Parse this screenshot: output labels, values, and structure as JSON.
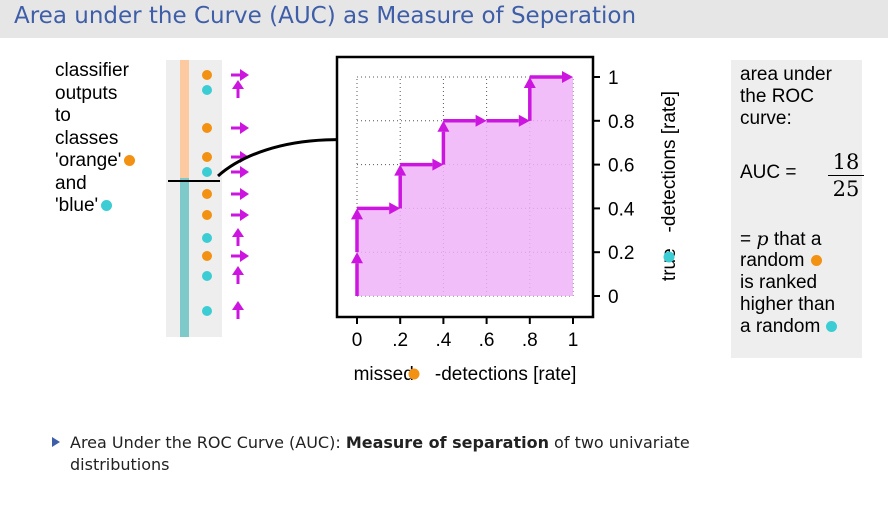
{
  "slide": {
    "title": "Area under the Curve (AUC) as Measure of Seperation"
  },
  "left_caption": [
    "classifier",
    "outputs",
    "to",
    "classes",
    "'orange'",
    "and",
    "'blue'"
  ],
  "ranking": {
    "classes_top_to_bottom": [
      "orange",
      "blue",
      "orange",
      "orange",
      "blue",
      "orange",
      "orange",
      "blue",
      "orange",
      "blue",
      "blue"
    ],
    "arrows_top_to_bottom": [
      "right",
      "up",
      "right",
      "right",
      "right",
      "right",
      "right",
      "up",
      "right",
      "up",
      "up"
    ]
  },
  "chart_data": {
    "type": "line",
    "x": [
      0,
      0,
      0,
      0.2,
      0.2,
      0.4,
      0.4,
      0.6,
      0.8,
      0.8,
      1.0
    ],
    "y": [
      0,
      0.2,
      0.4,
      0.4,
      0.6,
      0.6,
      0.8,
      0.8,
      0.8,
      1.0,
      1.0
    ],
    "xlim": [
      0,
      1
    ],
    "ylim": [
      0,
      1
    ],
    "x_ticks": [
      "0",
      ".2",
      ".4",
      ".6",
      ".8",
      "1"
    ],
    "y_ticks": [
      "0",
      "0.2",
      "0.4",
      "0.6",
      "0.8",
      "1"
    ],
    "xlabel_parts": [
      "missed ",
      "-detections [rate]"
    ],
    "ylabel_parts": [
      "true ",
      "-detections [rate]"
    ],
    "grid": true,
    "area_fill": true
  },
  "side_note": {
    "lines_top": [
      "area under",
      "the ROC",
      "curve:"
    ],
    "auc_label": "AUC =",
    "auc_numerator": "18",
    "auc_denominator": "25",
    "prob_line1_prefix": "=",
    "prob_line1_var": "p",
    "prob_line1_suffix": "that a",
    "prob_line2": "random",
    "prob_line3": "is ranked",
    "prob_line4": "higher than",
    "prob_line5": "a random"
  },
  "bullet": {
    "prefix": "Area Under the ROC Curve (AUC): ",
    "bold": "Measure of separation",
    "suffix": " of two univariate",
    "line2": "distributions"
  },
  "colors": {
    "orange": "#f29112",
    "blue": "#3bcdd3",
    "magenta": "#cc16e0",
    "area_fill": "#f0b3f8",
    "title_blue": "#3f5ea8",
    "title_bar": "#e6e6e6"
  }
}
